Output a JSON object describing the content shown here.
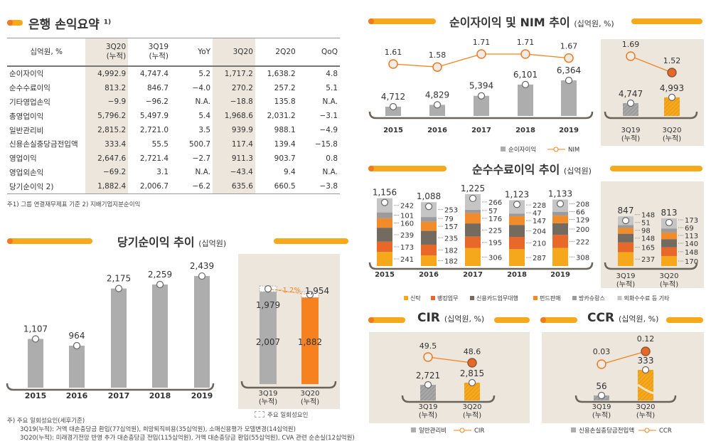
{
  "summary": {
    "title": "은행 손익요약",
    "title_sup": "1)",
    "headers": [
      "십억원, %",
      "3Q20\n(누적)",
      "3Q19\n(누적)",
      "YoY",
      "3Q20",
      "2Q20",
      "QoQ"
    ],
    "rows": [
      [
        "순이자이익",
        "4,992.9",
        "4,747.4",
        "5.2",
        "1,717.2",
        "1,638.2",
        "4.8"
      ],
      [
        "순수수료이익",
        "813.2",
        "846.7",
        "−4.0",
        "270.2",
        "257.2",
        "5.1"
      ],
      [
        "기타영업손익",
        "−9.9",
        "−96.2",
        "N.A.",
        "−18.8",
        "135.8",
        "N.A."
      ],
      [
        "총영업이익",
        "5,796.2",
        "5,497.9",
        "5.4",
        "1,968.6",
        "2,031.2",
        "−3.1"
      ],
      [
        "일반관리비",
        "2,815.2",
        "2,721.0",
        "3.5",
        "939.9",
        "988.1",
        "−4.9"
      ],
      [
        "신용손실충당금전입액",
        "333.4",
        "55.5",
        "500.7",
        "117.4",
        "139.4",
        "−15.8"
      ],
      [
        "영업이익",
        "2,647.6",
        "2,721.4",
        "−2.7",
        "911.3",
        "903.7",
        "0.8"
      ],
      [
        "영업외손익",
        "−69.2",
        "3.1",
        "N.A.",
        "−43.4",
        "9.4",
        "N.A."
      ],
      [
        "당기순이익 2)",
        "1,882.4",
        "2,006.7",
        "−6.2",
        "635.6",
        "660.5",
        "−3.8"
      ]
    ],
    "footnote": "주1) 그룹 연결재무제표 기준   2) 지배기업지분순이익"
  },
  "net_income": {
    "title": "당기순이익 추이",
    "unit": "(십억원)",
    "legend_onetime": "주요 일회성요인",
    "footnotes": [
      "주) 주요 일회성요인(세후기준)",
      "3Q19(누적): 거액 대손충당금 환입(77십억원), 희망퇴직비용(35십억원), 소매신용평가 모델변경(14십억원)",
      "3Q20(누적): 미래경기전망 반영 추가 대손충당금 전입(115십억원), 거액 대손충당금 환입(55십억원), CVA 관련 순손실(12십억원)"
    ]
  },
  "nim_section": {
    "title": "순이자이익 및 NIM 추이",
    "unit": "(십억원, %)"
  },
  "fee_section": {
    "title": "순수수료이익 추이",
    "unit": "(십억원)"
  },
  "cir_section": {
    "title": "CIR",
    "unit": "(십억원, %)"
  },
  "ccr_section": {
    "title": "CCR",
    "unit": "(십억원, %)"
  },
  "colors": {
    "orange": "#f5821f",
    "yellow": "#f6a91b",
    "gray_bar": "#aeadae",
    "panel": "#ece6dd",
    "trust": "#f5a81c",
    "banking": "#e8682a",
    "card": "#736a60",
    "fund": "#f28b2a",
    "bancassurance": "#9c9a9b",
    "other": "#c6c5c6"
  },
  "chart_data": [
    {
      "id": "net_income",
      "type": "bar",
      "categories": [
        "2015",
        "2016",
        "2017",
        "2018",
        "2019"
      ],
      "values": [
        1107,
        964,
        2175,
        2259,
        2439
      ],
      "value_labels": [
        "1,107",
        "964",
        "2,175",
        "2,259",
        "2,439"
      ],
      "highlight": {
        "categories": [
          "3Q19\n(누적)",
          "3Q20\n(누적)"
        ],
        "reported": [
          2007,
          1882
        ],
        "reported_labels": [
          "2,007",
          "1,882"
        ],
        "excluding_one_time": [
          1979,
          1954
        ],
        "excluding_one_time_labels": [
          "1,979",
          "1,954"
        ],
        "change_label": "−1.2%"
      }
    },
    {
      "id": "nim",
      "type": "bar+line",
      "categories": [
        "2015",
        "2016",
        "2017",
        "2018",
        "2019"
      ],
      "series": [
        {
          "name": "순이자이익",
          "type": "bar",
          "values": [
            4712,
            4829,
            5394,
            6101,
            6364
          ],
          "labels": [
            "4,712",
            "4,829",
            "5,394",
            "6,101",
            "6,364"
          ]
        },
        {
          "name": "NIM",
          "type": "line",
          "values": [
            1.61,
            1.58,
            1.71,
            1.71,
            1.67
          ],
          "labels": [
            "1.61",
            "1.58",
            "1.71",
            "1.71",
            "1.67"
          ]
        }
      ],
      "highlight": {
        "categories": [
          "3Q19\n(누적)",
          "3Q20\n(누적)"
        ],
        "bar_values": [
          4747,
          4993
        ],
        "bar_labels": [
          "4,747",
          "4,993"
        ],
        "line_values": [
          1.69,
          1.52
        ],
        "line_labels": [
          "1.69",
          "1.52"
        ]
      },
      "legend": [
        "순이자이익",
        "NIM"
      ]
    },
    {
      "id": "fee",
      "type": "stacked-bar",
      "categories": [
        "2015",
        "2016",
        "2017",
        "2018",
        "2019",
        "3Q19\n(누적)",
        "3Q20\n(누적)"
      ],
      "series": [
        {
          "name": "신탁",
          "values": [
            241,
            182,
            306,
            287,
            308,
            237,
            170
          ]
        },
        {
          "name": "뱅킹업무",
          "values": [
            173,
            182,
            195,
            210,
            222,
            165,
            148
          ]
        },
        {
          "name": "신용카드업무대행",
          "values": [
            239,
            235,
            225,
            204,
            200,
            148,
            140
          ]
        },
        {
          "name": "펀드판매",
          "values": [
            160,
            157,
            176,
            147,
            129,
            98,
            113
          ]
        },
        {
          "name": "방카슈랑스",
          "values": [
            101,
            79,
            57,
            47,
            66,
            51,
            69
          ]
        },
        {
          "name": "외화수수료 등 기타",
          "values": [
            242,
            253,
            266,
            228,
            208,
            148,
            173
          ]
        }
      ],
      "totals": [
        1156,
        1088,
        1225,
        1123,
        1133,
        847,
        813
      ],
      "total_labels": [
        "1,156",
        "1,088",
        "1,225",
        "1,123",
        "1,133",
        "847",
        "813"
      ],
      "legend": [
        "신탁",
        "뱅킹업무",
        "신용카드업무대행",
        "펀드판매",
        "방카슈랑스",
        "외화수수료 등 기타"
      ]
    },
    {
      "id": "cir",
      "type": "bar+line",
      "categories": [
        "3Q19\n(누적)",
        "3Q20\n(누적)"
      ],
      "series": [
        {
          "name": "일반관리비",
          "type": "bar",
          "values": [
            2721,
            2815
          ],
          "labels": [
            "2,721",
            "2,815"
          ]
        },
        {
          "name": "CIR",
          "type": "line",
          "values": [
            49.5,
            48.6
          ],
          "labels": [
            "49.5",
            "48.6"
          ]
        }
      ],
      "legend": [
        "일반관리비",
        "CIR"
      ]
    },
    {
      "id": "ccr",
      "type": "bar+line",
      "categories": [
        "3Q19\n(누적)",
        "3Q20\n(누적)"
      ],
      "series": [
        {
          "name": "신용손실충당금전입액",
          "type": "bar",
          "values": [
            56,
            333
          ],
          "labels": [
            "56",
            "333"
          ]
        },
        {
          "name": "CCR",
          "type": "line",
          "values": [
            0.03,
            0.12
          ],
          "labels": [
            "0.03",
            "0.12"
          ]
        }
      ],
      "legend": [
        "신용손실충당금전입액",
        "CCR"
      ]
    }
  ]
}
